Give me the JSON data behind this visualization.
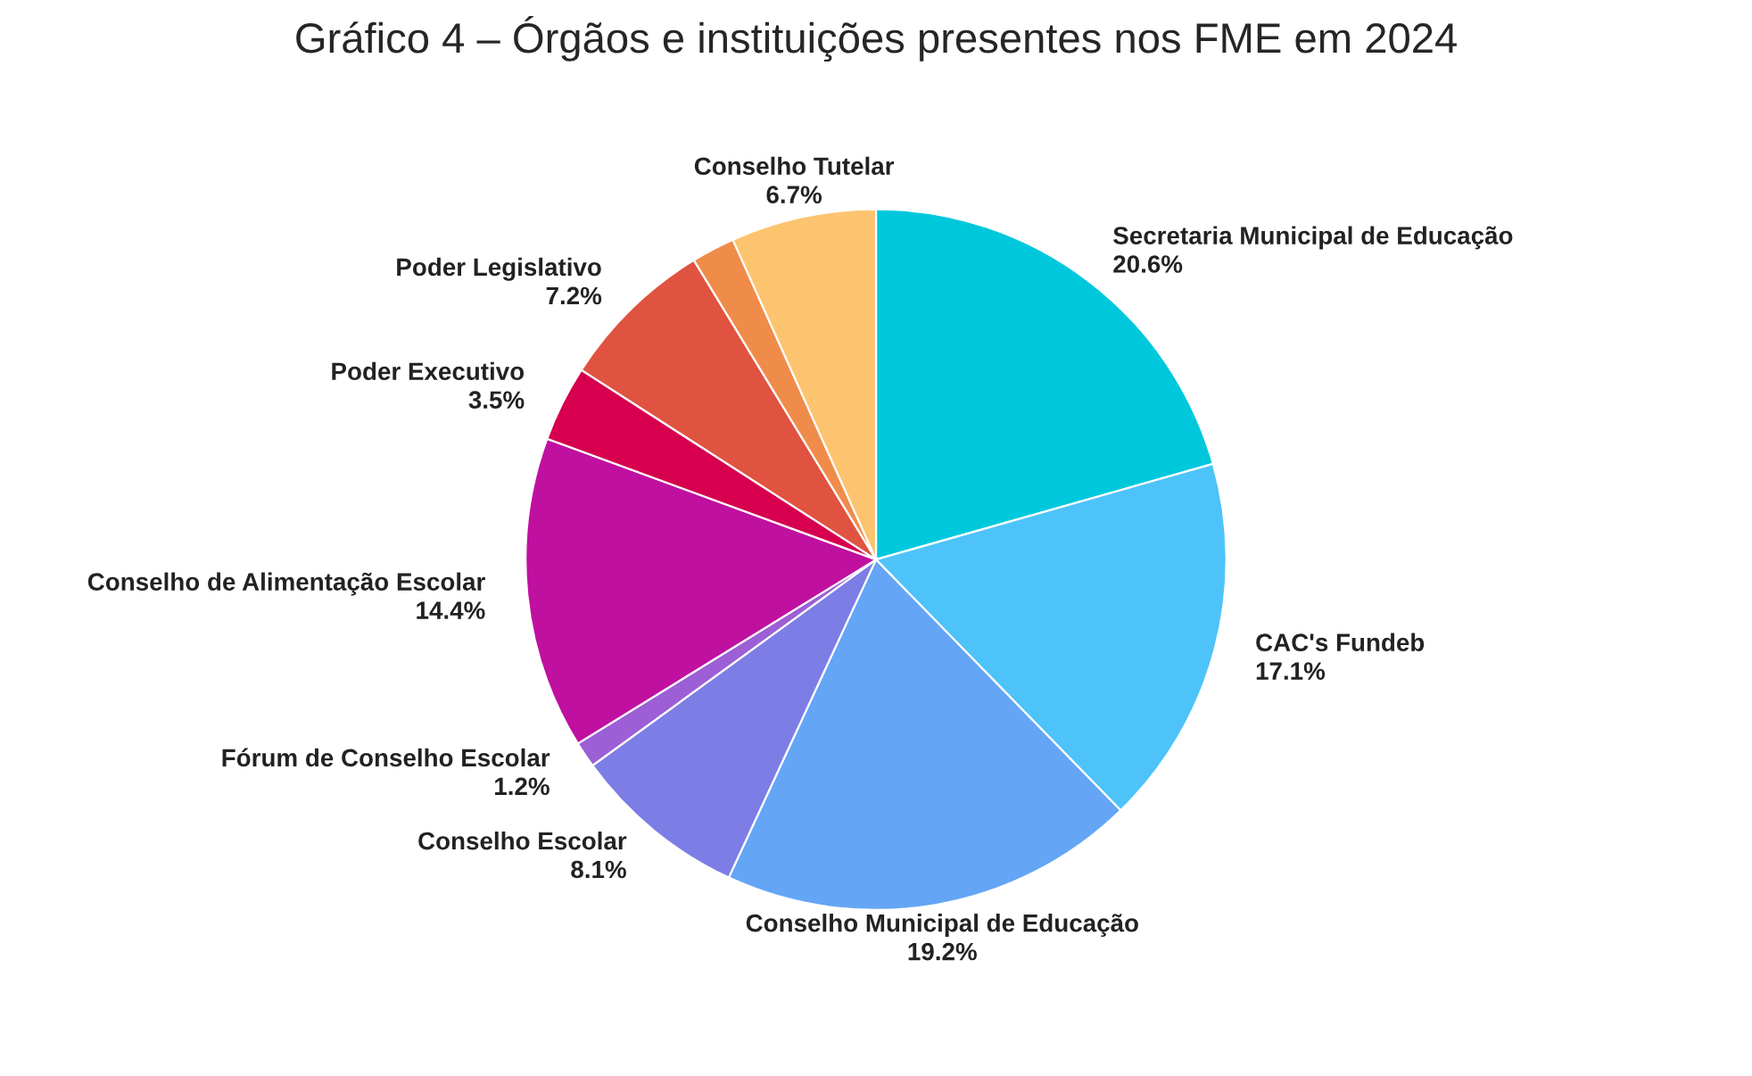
{
  "chart_data": {
    "type": "pie",
    "title": "Gráfico 4 – Órgãos e instituições presentes nos FME em 2024",
    "categories": [
      "Secretaria Municipal de Educação",
      "CAC's Fundeb",
      "Conselho Municipal de Educação",
      "Conselho Escolar",
      "Fórum de Conselho Escolar",
      "Conselho de Alimentação Escolar",
      "Poder Executivo",
      "Poder Legislativo",
      null,
      "Conselho Tutelar"
    ],
    "values": [
      20.6,
      17.1,
      19.2,
      8.1,
      1.2,
      14.4,
      3.5,
      7.2,
      2.0,
      6.7
    ],
    "value_labels": [
      "20.6%",
      "17.1%",
      "19.2%",
      "8.1%",
      "1.2%",
      "14.4%",
      "3.5%",
      "7.2%",
      null,
      "6.7%"
    ],
    "colors": [
      "#00c8dc",
      "#4dc3fa",
      "#64a5f5",
      "#7d7de6",
      "#9c5fd6",
      "#c010a0",
      "#d6004f",
      "#e05340",
      "#f08c4a",
      "#fdc46f"
    ]
  }
}
